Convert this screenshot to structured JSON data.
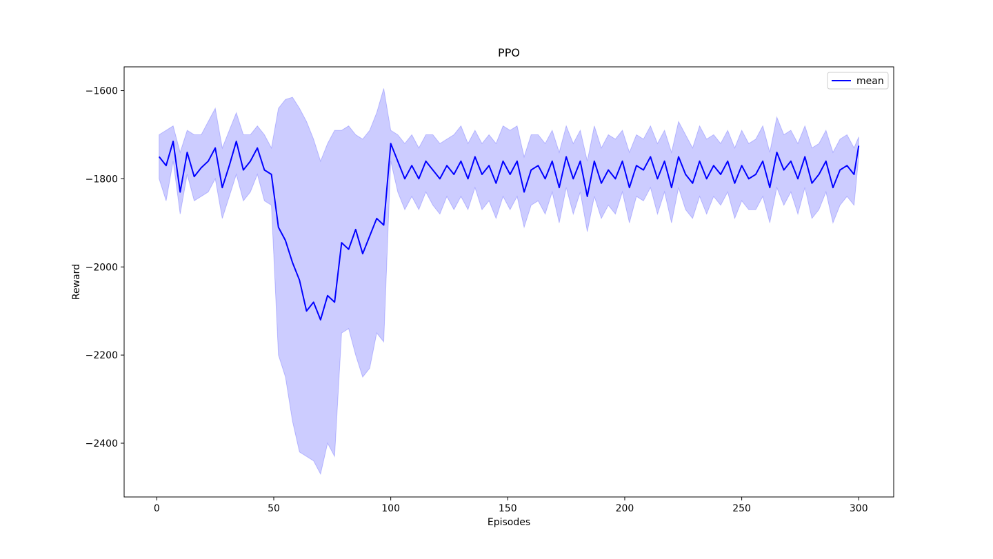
{
  "chart_data": {
    "type": "line",
    "title": "PPO",
    "xlabel": "Episodes",
    "ylabel": "Reward",
    "legend": "upper right",
    "xlim": [
      -13.95,
      314.95
    ],
    "ylim": [
      -2522,
      -1546
    ],
    "xticks": [
      0,
      50,
      100,
      150,
      200,
      250,
      300
    ],
    "yticks": [
      {
        "value": -2400,
        "label": "−2400"
      },
      {
        "value": -2200,
        "label": "−2200"
      },
      {
        "value": -2000,
        "label": "−2000"
      },
      {
        "value": -1800,
        "label": "−1800"
      },
      {
        "value": -1600,
        "label": "−1600"
      }
    ],
    "x": [
      1,
      4,
      7,
      10,
      13,
      16,
      19,
      22,
      25,
      28,
      31,
      34,
      37,
      40,
      43,
      46,
      49,
      52,
      55,
      58,
      61,
      64,
      67,
      70,
      73,
      76,
      79,
      82,
      85,
      88,
      91,
      94,
      97,
      100,
      103,
      106,
      109,
      112,
      115,
      118,
      121,
      124,
      127,
      130,
      133,
      136,
      139,
      142,
      145,
      148,
      151,
      154,
      157,
      160,
      163,
      166,
      169,
      172,
      175,
      178,
      181,
      184,
      187,
      190,
      193,
      196,
      199,
      202,
      205,
      208,
      211,
      214,
      217,
      220,
      223,
      226,
      229,
      232,
      235,
      238,
      241,
      244,
      247,
      250,
      253,
      256,
      259,
      262,
      265,
      268,
      271,
      274,
      277,
      280,
      283,
      286,
      289,
      292,
      295,
      298,
      300
    ],
    "series": [
      {
        "name": "mean",
        "color": "#0000ff",
        "values": [
          -1750,
          -1770,
          -1715,
          -1830,
          -1740,
          -1795,
          -1775,
          -1760,
          -1730,
          -1820,
          -1770,
          -1715,
          -1780,
          -1760,
          -1730,
          -1780,
          -1790,
          -1910,
          -1940,
          -1990,
          -2030,
          -2100,
          -2080,
          -2120,
          -2065,
          -2080,
          -1945,
          -1960,
          -1915,
          -1970,
          -1930,
          -1890,
          -1905,
          -1720,
          -1760,
          -1800,
          -1770,
          -1800,
          -1760,
          -1780,
          -1800,
          -1770,
          -1790,
          -1760,
          -1800,
          -1750,
          -1790,
          -1770,
          -1810,
          -1760,
          -1790,
          -1760,
          -1830,
          -1780,
          -1770,
          -1800,
          -1760,
          -1820,
          -1750,
          -1800,
          -1760,
          -1840,
          -1760,
          -1810,
          -1780,
          -1800,
          -1760,
          -1820,
          -1770,
          -1780,
          -1750,
          -1800,
          -1760,
          -1820,
          -1750,
          -1790,
          -1810,
          -1760,
          -1800,
          -1770,
          -1790,
          -1760,
          -1810,
          -1770,
          -1800,
          -1790,
          -1760,
          -1820,
          -1740,
          -1780,
          -1760,
          -1800,
          -1750,
          -1810,
          -1790,
          -1760,
          -1820,
          -1780,
          -1770,
          -1790,
          -1725
        ]
      }
    ],
    "band": {
      "color": "#0000ff",
      "opacity": 0.2,
      "upper": [
        -1700,
        -1690,
        -1680,
        -1740,
        -1690,
        -1700,
        -1700,
        -1670,
        -1640,
        -1730,
        -1690,
        -1650,
        -1700,
        -1700,
        -1680,
        -1700,
        -1730,
        -1640,
        -1620,
        -1615,
        -1640,
        -1670,
        -1710,
        -1760,
        -1720,
        -1690,
        -1690,
        -1680,
        -1700,
        -1710,
        -1690,
        -1650,
        -1595,
        -1690,
        -1700,
        -1720,
        -1700,
        -1730,
        -1700,
        -1700,
        -1720,
        -1710,
        -1700,
        -1680,
        -1720,
        -1690,
        -1720,
        -1700,
        -1720,
        -1680,
        -1690,
        -1680,
        -1750,
        -1700,
        -1700,
        -1720,
        -1690,
        -1740,
        -1680,
        -1720,
        -1690,
        -1760,
        -1680,
        -1730,
        -1700,
        -1710,
        -1690,
        -1740,
        -1700,
        -1710,
        -1680,
        -1720,
        -1690,
        -1740,
        -1670,
        -1700,
        -1730,
        -1680,
        -1710,
        -1700,
        -1720,
        -1690,
        -1730,
        -1690,
        -1720,
        -1710,
        -1680,
        -1740,
        -1660,
        -1700,
        -1690,
        -1720,
        -1680,
        -1730,
        -1720,
        -1690,
        -1740,
        -1710,
        -1700,
        -1730,
        -1705
      ],
      "lower": [
        -1800,
        -1850,
        -1760,
        -1880,
        -1790,
        -1850,
        -1840,
        -1830,
        -1800,
        -1890,
        -1840,
        -1790,
        -1850,
        -1830,
        -1790,
        -1850,
        -1860,
        -2200,
        -2250,
        -2350,
        -2420,
        -2430,
        -2440,
        -2470,
        -2400,
        -2430,
        -2150,
        -2140,
        -2200,
        -2250,
        -2230,
        -2150,
        -2170,
        -1760,
        -1830,
        -1870,
        -1840,
        -1870,
        -1830,
        -1860,
        -1880,
        -1840,
        -1870,
        -1840,
        -1870,
        -1820,
        -1870,
        -1850,
        -1890,
        -1840,
        -1870,
        -1840,
        -1910,
        -1860,
        -1850,
        -1880,
        -1830,
        -1900,
        -1820,
        -1880,
        -1830,
        -1920,
        -1840,
        -1890,
        -1860,
        -1880,
        -1830,
        -1900,
        -1840,
        -1850,
        -1820,
        -1880,
        -1830,
        -1900,
        -1820,
        -1870,
        -1890,
        -1840,
        -1880,
        -1840,
        -1860,
        -1830,
        -1890,
        -1850,
        -1870,
        -1870,
        -1840,
        -1900,
        -1820,
        -1860,
        -1830,
        -1880,
        -1820,
        -1890,
        -1870,
        -1830,
        -1900,
        -1860,
        -1840,
        -1860,
        -1750
      ]
    }
  }
}
